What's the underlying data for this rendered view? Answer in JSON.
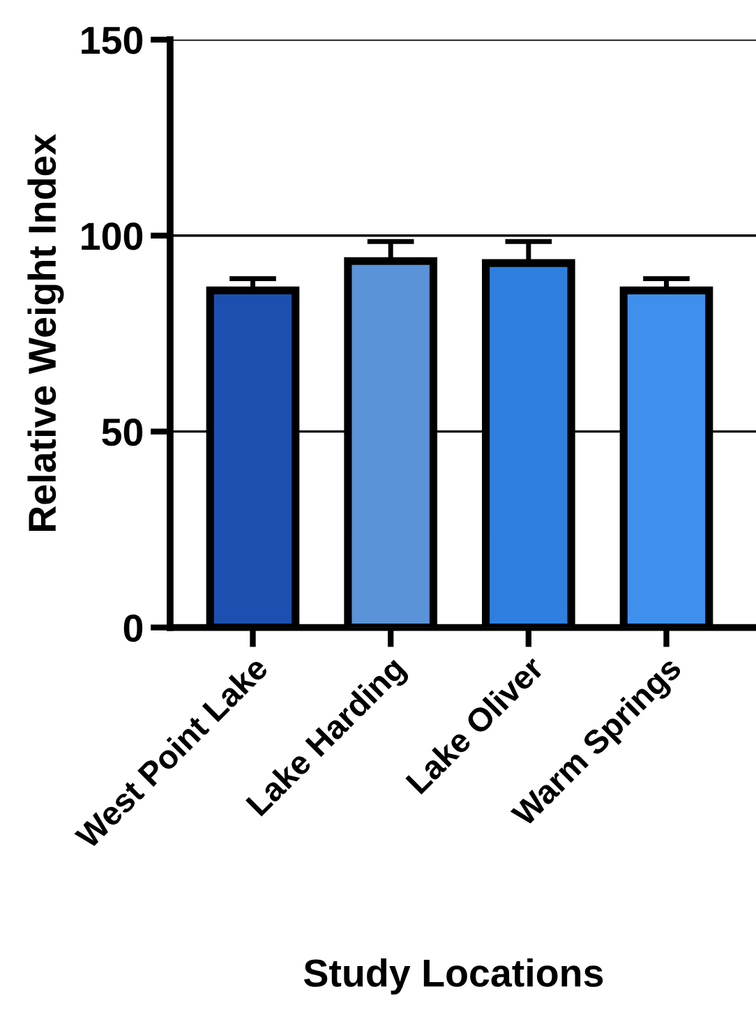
{
  "chart_data": {
    "type": "bar",
    "xlabel": "Study Locations",
    "ylabel": "Relative Weight Index",
    "categories": [
      "West Point Lake",
      "Lake Harding",
      "Lake Oliver",
      "Warm Springs"
    ],
    "values": [
      86,
      93.5,
      93,
      86
    ],
    "errors": [
      3,
      5,
      5.5,
      3
    ],
    "colors": [
      "#1d4fb0",
      "#5a93d8",
      "#2f7fe0",
      "#3f8fec"
    ],
    "ylim": [
      0,
      150
    ],
    "yticks": [
      0,
      50,
      100,
      150
    ],
    "grid": "y"
  }
}
